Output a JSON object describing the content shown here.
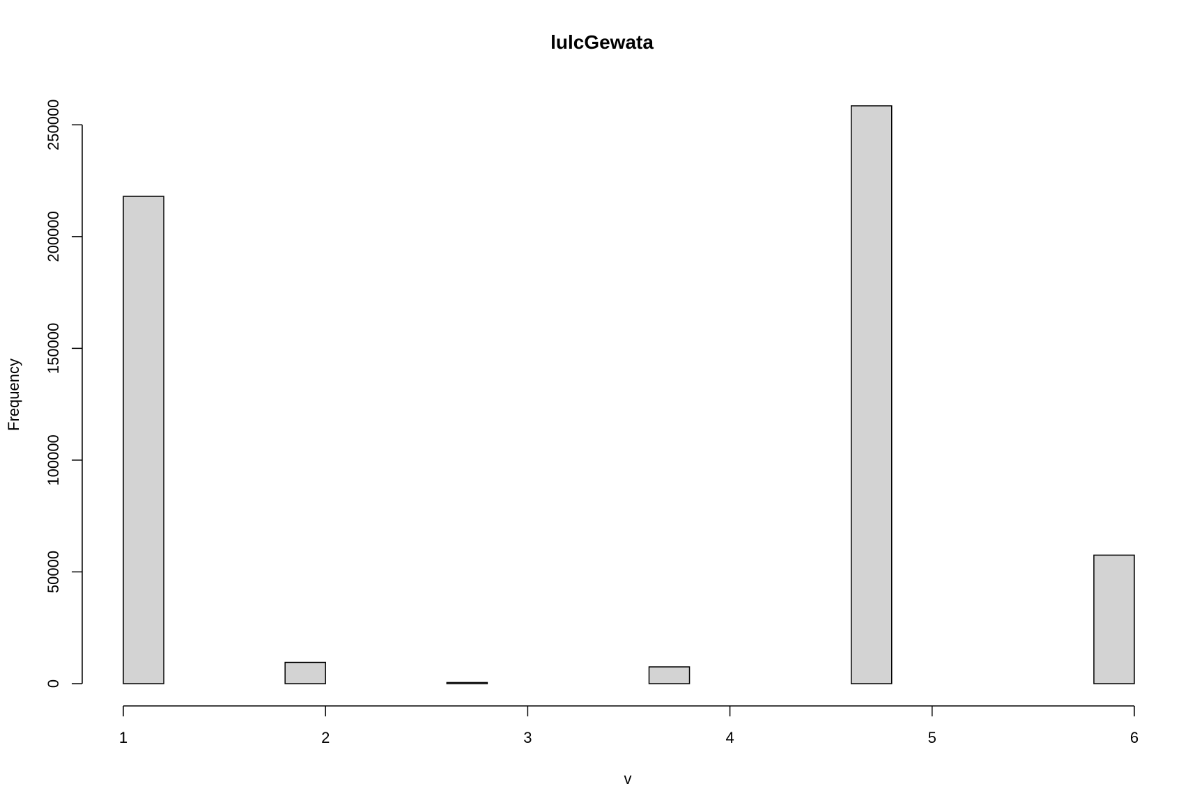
{
  "chart_data": {
    "type": "bar",
    "title": "lulcGewata",
    "xlabel": "v",
    "ylabel": "Frequency",
    "bin_width": 0.2,
    "bin_edges": [
      1.0,
      1.2,
      1.4,
      1.6,
      1.8,
      2.0,
      2.2,
      2.4,
      2.6,
      2.8,
      3.0,
      3.2,
      3.4,
      3.6,
      3.8,
      4.0,
      4.2,
      4.4,
      4.6,
      4.8,
      5.0,
      5.2,
      5.4,
      5.6,
      5.8,
      6.0
    ],
    "values": [
      218000,
      0,
      0,
      0,
      9500,
      0,
      0,
      0,
      500,
      0,
      0,
      0,
      0,
      7500,
      0,
      0,
      0,
      0,
      258500,
      0,
      0,
      0,
      0,
      0,
      57500
    ],
    "xlim": [
      1,
      6
    ],
    "ylim": [
      0,
      258500
    ],
    "x_ticks": [
      1,
      2,
      3,
      4,
      5,
      6
    ],
    "y_ticks": [
      0,
      50000,
      100000,
      150000,
      200000,
      250000
    ],
    "grid": false,
    "colors": {
      "bar_fill": "#d3d3d3",
      "bar_stroke": "#000000",
      "axis": "#000000",
      "background": "#ffffff"
    }
  }
}
